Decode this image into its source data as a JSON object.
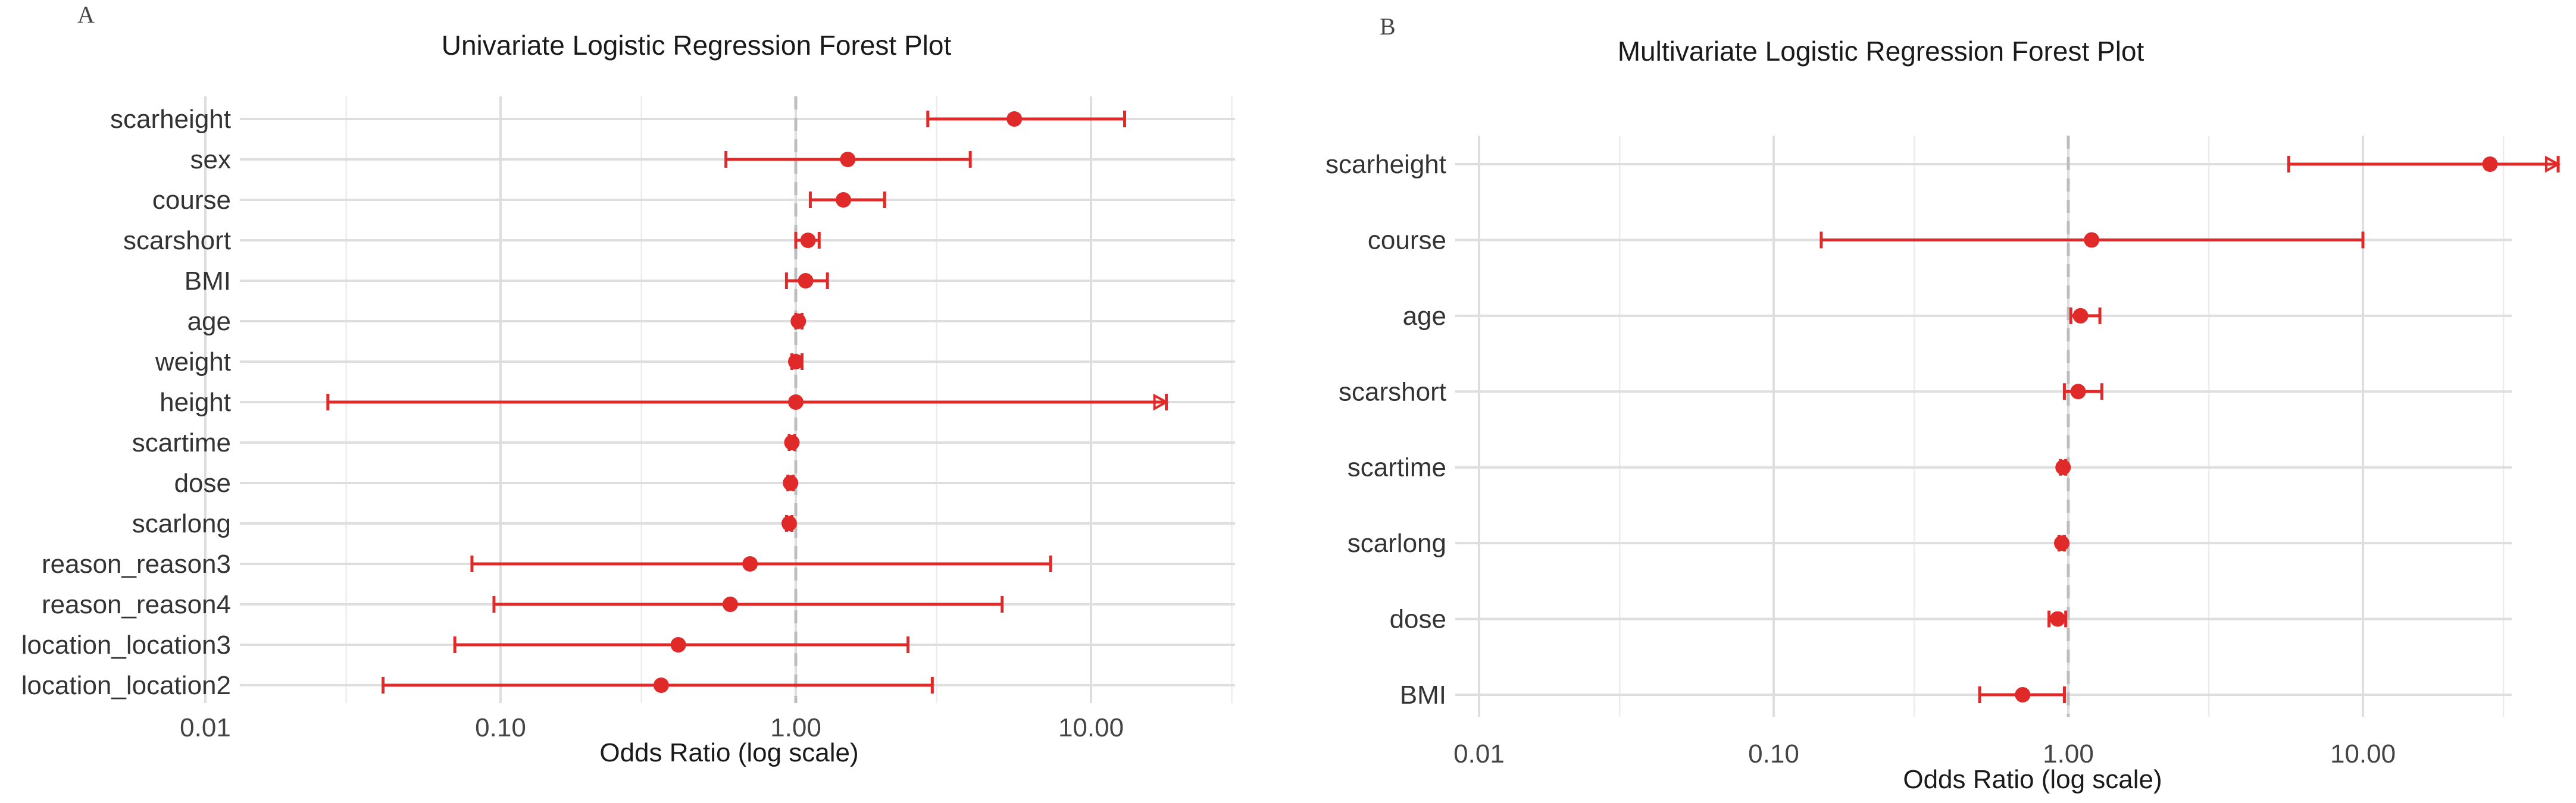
{
  "colors": {
    "point": "#e02a2a",
    "grid": "#dedede",
    "refline": "#bdbdbd"
  },
  "chart_data": [
    {
      "panel": "A",
      "type": "scatter",
      "title": "Univariate Logistic Regression Forest Plot",
      "xlabel": "Odds Ratio (log scale)",
      "xscale": "log",
      "xlim": [
        0.01,
        25
      ],
      "xticks": [
        "0.01",
        "0.10",
        "1.00",
        "10.00"
      ],
      "reference_line": 1,
      "categories": [
        "scarheight",
        "sex",
        "course",
        "scarshort",
        "BMI",
        "age",
        "weight",
        "height",
        "scartime",
        "dose",
        "scarlong",
        "reason_reason3",
        "reason_reason4",
        "location_location3",
        "location_location2"
      ],
      "series": [
        {
          "estimate": [
            5.5,
            1.5,
            1.45,
            1.1,
            1.08,
            1.02,
            1.0,
            1.0,
            0.97,
            0.96,
            0.95,
            0.7,
            0.6,
            0.4,
            0.35
          ],
          "lower": [
            2.8,
            0.58,
            1.12,
            1.0,
            0.93,
            1.0,
            0.97,
            0.026,
            0.95,
            0.94,
            0.93,
            0.08,
            0.095,
            0.07,
            0.04
          ],
          "upper": [
            13.0,
            3.9,
            2.0,
            1.2,
            1.28,
            1.05,
            1.05,
            18.0,
            0.99,
            0.98,
            0.97,
            7.3,
            5.0,
            2.4,
            2.9
          ]
        }
      ]
    },
    {
      "panel": "B",
      "type": "scatter",
      "title": "Multivariate Logistic Regression Forest Plot",
      "xlabel": "Odds Ratio (log scale)",
      "xscale": "log",
      "xlim": [
        0.01,
        50
      ],
      "xticks": [
        "0.01",
        "0.10",
        "1.00",
        "10.00"
      ],
      "reference_line": 1,
      "categories": [
        "scarheight",
        "course",
        "age",
        "scarshort",
        "scartime",
        "scarlong",
        "dose",
        "BMI"
      ],
      "series": [
        {
          "estimate": [
            27.0,
            1.2,
            1.1,
            1.08,
            0.96,
            0.95,
            0.92,
            0.7
          ],
          "lower": [
            5.6,
            0.145,
            1.02,
            0.97,
            0.94,
            0.93,
            0.86,
            0.5
          ],
          "upper": [
            46.0,
            10.0,
            1.28,
            1.3,
            0.98,
            0.97,
            0.98,
            0.97
          ]
        }
      ]
    }
  ]
}
